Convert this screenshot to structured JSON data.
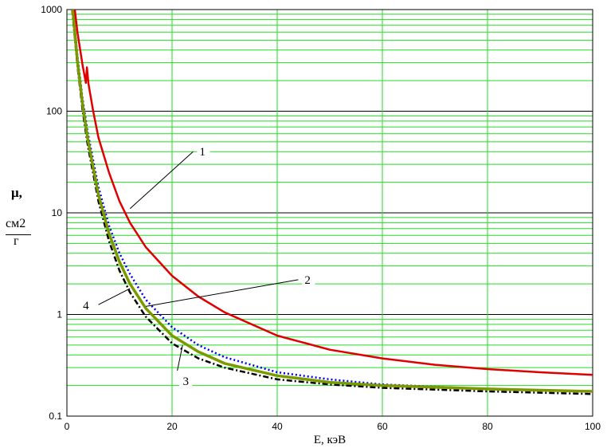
{
  "chart_data": {
    "type": "line",
    "xlabel": "E, кэВ",
    "ylabel": {
      "symbol": "μ,",
      "unit_numerator": "см2",
      "unit_denominator": "г"
    },
    "xlim": [
      0,
      100
    ],
    "ylim": [
      0.1,
      1000
    ],
    "y_scale": "log",
    "grid": true,
    "x_ticks": [
      "0",
      "20",
      "40",
      "60",
      "80",
      "100"
    ],
    "y_ticks": [
      "0.1",
      "1",
      "10",
      "100",
      "1000"
    ],
    "series": [
      {
        "name": "1",
        "color": "#e00000",
        "style": "solid",
        "points": [
          [
            1.5,
            1000
          ],
          [
            2,
            600
          ],
          [
            3,
            280
          ],
          [
            3.6,
            190
          ],
          [
            3.8,
            270
          ],
          [
            4.1,
            185
          ],
          [
            5,
            100
          ],
          [
            6,
            55
          ],
          [
            8,
            25
          ],
          [
            10,
            13
          ],
          [
            12,
            8
          ],
          [
            15,
            4.6
          ],
          [
            20,
            2.4
          ],
          [
            25,
            1.5
          ],
          [
            30,
            1.05
          ],
          [
            40,
            0.62
          ],
          [
            50,
            0.45
          ],
          [
            60,
            0.37
          ],
          [
            70,
            0.32
          ],
          [
            80,
            0.29
          ],
          [
            90,
            0.27
          ],
          [
            100,
            0.255
          ]
        ]
      },
      {
        "name": "2",
        "color": "#0000ee",
        "style": "dotted",
        "points": [
          [
            1.2,
            1000
          ],
          [
            2,
            350
          ],
          [
            3,
            130
          ],
          [
            4,
            60
          ],
          [
            6,
            18
          ],
          [
            8,
            7.5
          ],
          [
            10,
            4
          ],
          [
            12,
            2.5
          ],
          [
            15,
            1.4
          ],
          [
            20,
            0.75
          ],
          [
            25,
            0.5
          ],
          [
            30,
            0.38
          ],
          [
            40,
            0.27
          ],
          [
            50,
            0.23
          ],
          [
            60,
            0.205
          ],
          [
            80,
            0.185
          ],
          [
            100,
            0.175
          ]
        ]
      },
      {
        "name": "3",
        "color": "#000000",
        "style": "dash-dot",
        "points": [
          [
            1.0,
            1000
          ],
          [
            2,
            280
          ],
          [
            3,
            100
          ],
          [
            4,
            45
          ],
          [
            6,
            13
          ],
          [
            8,
            5.3
          ],
          [
            10,
            2.7
          ],
          [
            12,
            1.65
          ],
          [
            15,
            0.95
          ],
          [
            20,
            0.52
          ],
          [
            25,
            0.37
          ],
          [
            30,
            0.3
          ],
          [
            40,
            0.23
          ],
          [
            50,
            0.205
          ],
          [
            60,
            0.19
          ],
          [
            80,
            0.175
          ],
          [
            100,
            0.165
          ]
        ]
      },
      {
        "name": "4",
        "color": "#7a9a00",
        "style": "solid-thick",
        "points": [
          [
            1.1,
            1000
          ],
          [
            2,
            310
          ],
          [
            3,
            115
          ],
          [
            4,
            52
          ],
          [
            6,
            15
          ],
          [
            8,
            6.3
          ],
          [
            10,
            3.3
          ],
          [
            12,
            2.0
          ],
          [
            15,
            1.15
          ],
          [
            20,
            0.62
          ],
          [
            25,
            0.43
          ],
          [
            30,
            0.33
          ],
          [
            40,
            0.25
          ],
          [
            50,
            0.215
          ],
          [
            60,
            0.2
          ],
          [
            80,
            0.185
          ],
          [
            100,
            0.175
          ]
        ]
      }
    ],
    "annotations": [
      {
        "text": "1",
        "from": [
          12,
          11
        ],
        "to": [
          24,
          40
        ]
      },
      {
        "text": "2",
        "from": [
          15,
          1.2
        ],
        "to": [
          44,
          2.2
        ]
      },
      {
        "text": "3",
        "from": [
          21,
          0.28
        ],
        "to": [
          22,
          0.5
        ]
      },
      {
        "text": "4",
        "from": [
          6,
          1.25
        ],
        "to": [
          12,
          1.8
        ]
      }
    ]
  }
}
